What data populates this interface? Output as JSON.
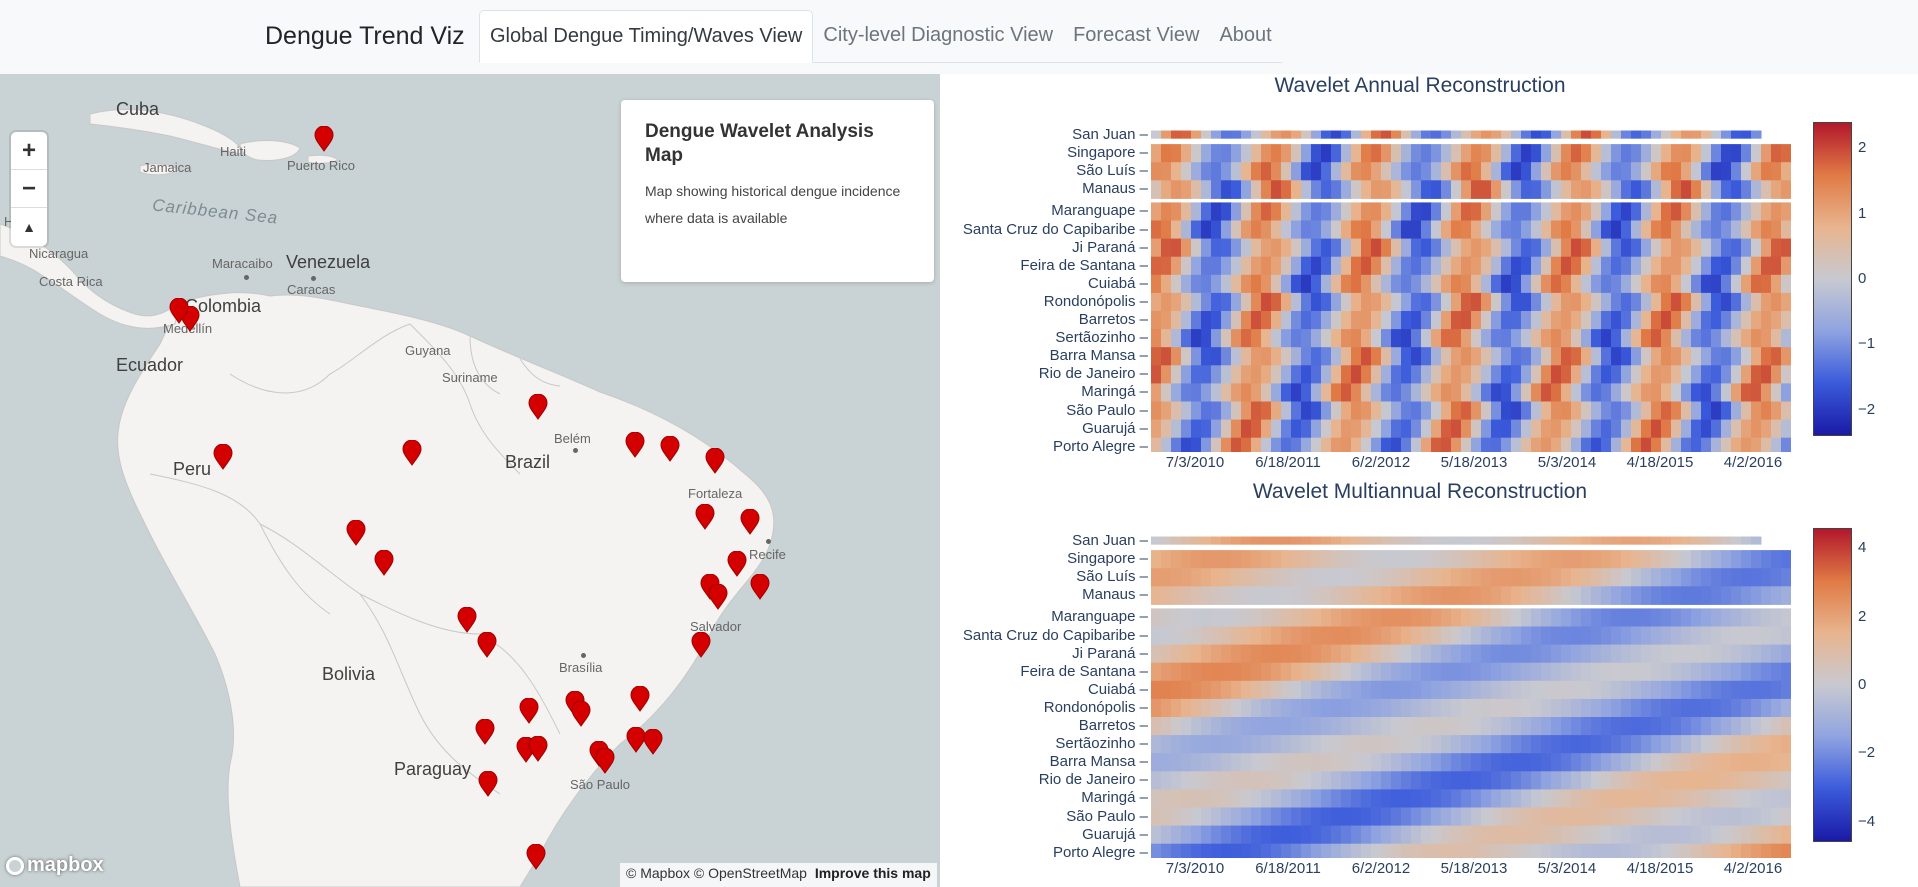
{
  "navbar": {
    "brand": "Dengue Trend Viz",
    "tabs": [
      {
        "label": "Global Dengue Timing/Waves View",
        "active": true
      },
      {
        "label": "City-level Diagnostic View",
        "active": false
      },
      {
        "label": "Forecast View",
        "active": false
      },
      {
        "label": "About",
        "active": false
      }
    ]
  },
  "map": {
    "zoom_in": "+",
    "zoom_out": "−",
    "compass": "▲",
    "info_card": {
      "title": "Dengue Wavelet Analysis Map",
      "text": "Map showing historical dengue incidence where data is available"
    },
    "labels": {
      "countries": [
        "Cuba",
        "Venezuela",
        "Colombia",
        "Ecuador",
        "Peru",
        "Brazil",
        "Bolivia",
        "Paraguay"
      ],
      "sea": "Caribbean Sea",
      "places": [
        "Jamaica",
        "Haiti",
        "Puerto Rico",
        "Nicaragua",
        "Costa Rica",
        "Maracaibo",
        "Caracas",
        "Medellín",
        "Guyana",
        "Suriname",
        "Belém",
        "Fortaleza",
        "Recife",
        "Salvador",
        "Brasília",
        "São Paulo",
        "Ho"
      ]
    },
    "attribution": "© Mapbox © OpenStreetMap",
    "improve_link": "Improve this map",
    "logo": "mapbox",
    "marker_count": 33,
    "marker_color": "#d40000"
  },
  "charts": {
    "annual": {
      "title": "Wavelet Annual Reconstruction",
      "colorbar_ticks": [
        "2",
        "1",
        "0",
        "−1",
        "−2"
      ]
    },
    "multiannual": {
      "title": "Wavelet Multiannual Reconstruction",
      "colorbar_ticks": [
        "4",
        "2",
        "0",
        "−2",
        "−4"
      ]
    }
  },
  "chart_data": [
    {
      "type": "heatmap",
      "title": "Wavelet Annual Reconstruction",
      "y_categories": [
        "San Juan",
        "Singapore",
        "São Luís",
        "Manaus",
        "Maranguape",
        "Santa Cruz do Capibaribe",
        "Ji Paraná",
        "Feira de Santana",
        "Cuiabá",
        "Rondonópolis",
        "Barretos",
        "Sertãozinho",
        "Barra Mansa",
        "Rio de Janeiro",
        "Maringá",
        "São Paulo",
        "Guarujá",
        "Porto Alegre"
      ],
      "x_ticks": [
        "7/3/2010",
        "6/18/2011",
        "6/2/2012",
        "5/18/2013",
        "5/3/2014",
        "4/18/2015",
        "4/2/2016"
      ],
      "colorscale": [
        "#1a1aa6",
        "#3b5bdb",
        "#8fa3e0",
        "#c8c9d0",
        "#e8b48e",
        "#e07a45",
        "#b2182b"
      ],
      "zrange": [
        -2.4,
        2.4
      ],
      "colorbar_ticks": [
        2,
        1,
        0,
        -1,
        -2
      ]
    },
    {
      "type": "heatmap",
      "title": "Wavelet Multiannual Reconstruction",
      "y_categories": [
        "San Juan",
        "Singapore",
        "São Luís",
        "Manaus",
        "Maranguape",
        "Santa Cruz do Capibaribe",
        "Ji Paraná",
        "Feira de Santana",
        "Cuiabá",
        "Rondonópolis",
        "Barretos",
        "Sertãozinho",
        "Barra Mansa",
        "Rio de Janeiro",
        "Maringá",
        "São Paulo",
        "Guarujá",
        "Porto Alegre"
      ],
      "x_ticks": [
        "7/3/2010",
        "6/18/2011",
        "6/2/2012",
        "5/18/2013",
        "5/3/2014",
        "4/18/2015",
        "4/2/2016"
      ],
      "colorscale": [
        "#1a1aa6",
        "#3b5bdb",
        "#8fa3e0",
        "#c8c9d0",
        "#e8b48e",
        "#e07a45",
        "#b2182b"
      ],
      "zrange": [
        -4.6,
        4.6
      ],
      "colorbar_ticks": [
        4,
        2,
        0,
        -2,
        -4
      ]
    }
  ]
}
